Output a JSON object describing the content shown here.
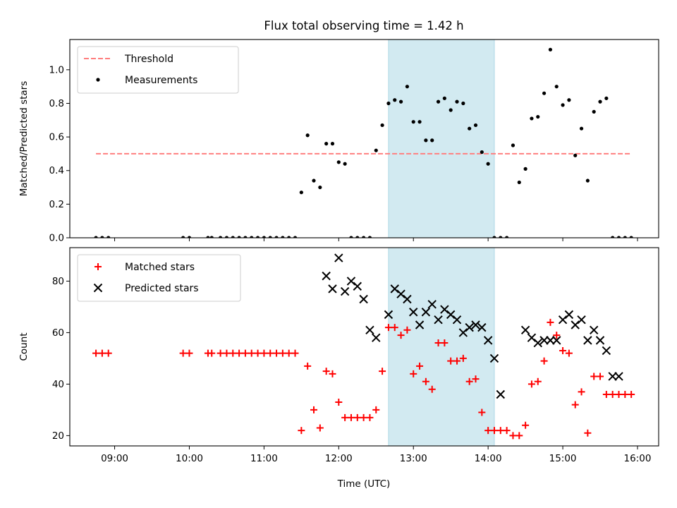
{
  "figure": {
    "title": "Flux total observing time = 1.42 h",
    "xlabel": "Time (UTC)",
    "highlight_color": "#add8e6"
  },
  "chart_data": [
    {
      "type": "scatter",
      "ylabel": "Matched/Predicted stars",
      "xlim": [
        "08:24",
        "16:17"
      ],
      "ylim": [
        0,
        1.18
      ],
      "yticks": [
        0.0,
        0.2,
        0.4,
        0.6,
        0.8,
        1.0
      ],
      "ytick_labels": [
        "0.0",
        "0.2",
        "0.4",
        "0.6",
        "0.8",
        "1.0"
      ],
      "xticks": [
        "09:00",
        "10:00",
        "11:00",
        "12:00",
        "13:00",
        "14:00",
        "15:00",
        "16:00"
      ],
      "highlight_span": [
        "12:40",
        "14:05"
      ],
      "legend_position": "top-left",
      "series": [
        {
          "name": "Threshold",
          "kind": "dashed-line",
          "color": "#ff7f7f",
          "x": [
            "08:45",
            "15:55"
          ],
          "y": [
            0.5,
            0.5
          ]
        },
        {
          "name": "Measurements",
          "kind": "dot",
          "color": "#000000",
          "x": [
            "08:45",
            "08:50",
            "08:55",
            "09:55",
            "10:00",
            "10:15",
            "10:18",
            "10:25",
            "10:30",
            "10:35",
            "10:40",
            "10:45",
            "10:50",
            "10:55",
            "11:00",
            "11:05",
            "11:10",
            "11:15",
            "11:20",
            "11:25",
            "11:30",
            "11:35",
            "11:40",
            "11:45",
            "11:50",
            "11:55",
            "12:00",
            "12:05",
            "12:10",
            "12:15",
            "12:20",
            "12:25",
            "12:30",
            "12:35",
            "12:40",
            "12:45",
            "12:50",
            "12:55",
            "13:00",
            "13:05",
            "13:10",
            "13:15",
            "13:20",
            "13:25",
            "13:30",
            "13:35",
            "13:40",
            "13:45",
            "13:50",
            "13:55",
            "14:00",
            "14:05",
            "14:10",
            "14:15",
            "14:20",
            "14:25",
            "14:30",
            "14:35",
            "14:40",
            "14:45",
            "14:50",
            "14:55",
            "15:00",
            "15:05",
            "15:10",
            "15:15",
            "15:20",
            "15:25",
            "15:30",
            "15:35",
            "15:40",
            "15:45",
            "15:50",
            "15:55"
          ],
          "y": [
            0,
            0,
            0,
            0,
            0,
            0,
            0,
            0,
            0,
            0,
            0,
            0,
            0,
            0,
            0,
            0,
            0,
            0,
            0,
            0,
            0.27,
            0.61,
            0.34,
            0.3,
            0.56,
            0.56,
            0.45,
            0.44,
            0,
            0,
            0,
            0,
            0.52,
            0.67,
            0.8,
            0.82,
            0.81,
            0.9,
            0.69,
            0.69,
            0.58,
            0.58,
            0.81,
            0.83,
            0.76,
            0.81,
            0.8,
            0.65,
            0.67,
            0.51,
            0.44,
            0,
            0,
            0,
            0.55,
            0.33,
            0.41,
            0.71,
            0.72,
            0.86,
            1.12,
            0.9,
            0.79,
            0.82,
            0.49,
            0.65,
            0.34,
            0.75,
            0.81,
            0.83,
            0,
            0,
            0,
            0
          ]
        }
      ]
    },
    {
      "type": "scatter",
      "ylabel": "Count",
      "xlim": [
        "08:24",
        "16:17"
      ],
      "ylim": [
        16,
        93
      ],
      "yticks": [
        20,
        40,
        60,
        80
      ],
      "ytick_labels": [
        "20",
        "40",
        "60",
        "80"
      ],
      "xticks": [
        "09:00",
        "10:00",
        "11:00",
        "12:00",
        "13:00",
        "14:00",
        "15:00",
        "16:00"
      ],
      "xtick_labels": [
        "09:00",
        "10:00",
        "11:00",
        "12:00",
        "13:00",
        "14:00",
        "15:00",
        "16:00"
      ],
      "highlight_span": [
        "12:40",
        "14:05"
      ],
      "legend_position": "top-left",
      "series": [
        {
          "name": "Matched stars",
          "kind": "plus",
          "color": "#ff0000",
          "x": [
            "08:45",
            "08:50",
            "08:55",
            "09:55",
            "10:00",
            "10:15",
            "10:18",
            "10:25",
            "10:30",
            "10:35",
            "10:40",
            "10:45",
            "10:50",
            "10:55",
            "11:00",
            "11:05",
            "11:10",
            "11:15",
            "11:20",
            "11:25",
            "11:30",
            "11:35",
            "11:40",
            "11:45",
            "11:50",
            "11:55",
            "12:00",
            "12:05",
            "12:10",
            "12:15",
            "12:20",
            "12:25",
            "12:30",
            "12:35",
            "12:40",
            "12:45",
            "12:50",
            "12:55",
            "13:00",
            "13:05",
            "13:10",
            "13:15",
            "13:20",
            "13:25",
            "13:30",
            "13:35",
            "13:40",
            "13:45",
            "13:50",
            "13:55",
            "14:00",
            "14:05",
            "14:10",
            "14:15",
            "14:20",
            "14:25",
            "14:30",
            "14:35",
            "14:40",
            "14:45",
            "14:50",
            "14:55",
            "15:00",
            "15:05",
            "15:10",
            "15:15",
            "15:20",
            "15:25",
            "15:30",
            "15:35",
            "15:40",
            "15:45",
            "15:50",
            "15:55"
          ],
          "y": [
            52,
            52,
            52,
            52,
            52,
            52,
            52,
            52,
            52,
            52,
            52,
            52,
            52,
            52,
            52,
            52,
            52,
            52,
            52,
            52,
            22,
            47,
            30,
            23,
            45,
            44,
            33,
            27,
            27,
            27,
            27,
            27,
            30,
            45,
            62,
            62,
            59,
            61,
            44,
            47,
            41,
            38,
            56,
            56,
            49,
            49,
            50,
            41,
            42,
            29,
            22,
            22,
            22,
            22,
            20,
            20,
            24,
            40,
            41,
            49,
            64,
            59,
            53,
            52,
            32,
            37,
            21,
            43,
            43,
            36,
            36,
            36,
            36,
            36
          ]
        },
        {
          "name": "Predicted stars",
          "kind": "cross",
          "color": "#000000",
          "x": [
            "11:50",
            "11:55",
            "12:00",
            "12:05",
            "12:10",
            "12:15",
            "12:20",
            "12:25",
            "12:30",
            "12:40",
            "12:45",
            "12:50",
            "12:55",
            "13:00",
            "13:05",
            "13:10",
            "13:15",
            "13:20",
            "13:25",
            "13:30",
            "13:35",
            "13:40",
            "13:45",
            "13:50",
            "13:55",
            "14:00",
            "14:05",
            "14:10",
            "14:30",
            "14:35",
            "14:40",
            "14:45",
            "14:50",
            "14:55",
            "15:00",
            "15:05",
            "15:10",
            "15:15",
            "15:20",
            "15:25",
            "15:30",
            "15:35",
            "15:40",
            "15:45"
          ],
          "y": [
            82,
            77,
            89,
            76,
            80,
            78,
            73,
            61,
            58,
            67,
            77,
            75,
            73,
            68,
            63,
            68,
            71,
            65,
            69,
            67,
            65,
            60,
            62,
            63,
            62,
            57,
            50,
            36,
            61,
            58,
            56,
            57,
            57,
            57,
            65,
            67,
            63,
            65,
            57,
            61,
            57,
            53,
            43,
            43
          ]
        }
      ]
    }
  ]
}
